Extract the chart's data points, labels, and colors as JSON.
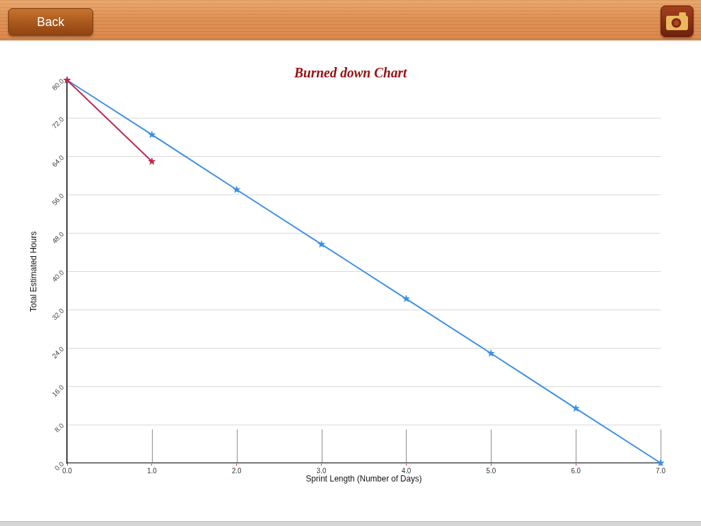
{
  "chart_data": {
    "type": "line",
    "title": "Burned down Chart",
    "xlabel": "Sprint Length (Number of Days)",
    "ylabel": "Total Estimated Hours",
    "annotations": [
      "Back"
    ],
    "x": [
      0,
      1,
      2,
      3,
      4,
      5,
      6,
      7
    ],
    "series": [
      {
        "color": "#3b8ee8",
        "values": [
          80,
          68.6,
          57.1,
          45.7,
          34.3,
          22.9,
          11.4,
          0
        ]
      },
      {
        "color": "#c4254a",
        "x": [
          0,
          1
        ],
        "values": [
          80,
          63
        ]
      }
    ],
    "xlim": [
      0,
      7
    ],
    "xticks": [
      {
        "value": 0,
        "label": "0.0"
      },
      {
        "value": 1,
        "label": "1.0"
      },
      {
        "value": 2,
        "label": "2.0"
      },
      {
        "value": 3,
        "label": "3.0"
      },
      {
        "value": 4,
        "label": "4.0"
      },
      {
        "value": 5,
        "label": "5.0"
      },
      {
        "value": 6,
        "label": "6.0"
      },
      {
        "value": 7,
        "label": "7.0"
      }
    ],
    "ylim": [
      0,
      80
    ],
    "yticks": [
      {
        "value": 0,
        "label": "0.0"
      },
      {
        "value": 8,
        "label": "8.0"
      },
      {
        "value": 16,
        "label": "16.0"
      },
      {
        "value": 24,
        "label": "24.0"
      },
      {
        "value": 32,
        "label": "32.0"
      },
      {
        "value": 40,
        "label": "40.0"
      },
      {
        "value": 48,
        "label": "48.0"
      },
      {
        "value": 56,
        "label": "56.0"
      },
      {
        "value": 64,
        "label": "64.0"
      },
      {
        "value": 72,
        "label": "72.0"
      },
      {
        "value": 80,
        "label": "80.0"
      }
    ],
    "grid": "y",
    "marker": "star",
    "line_style": "solid"
  }
}
